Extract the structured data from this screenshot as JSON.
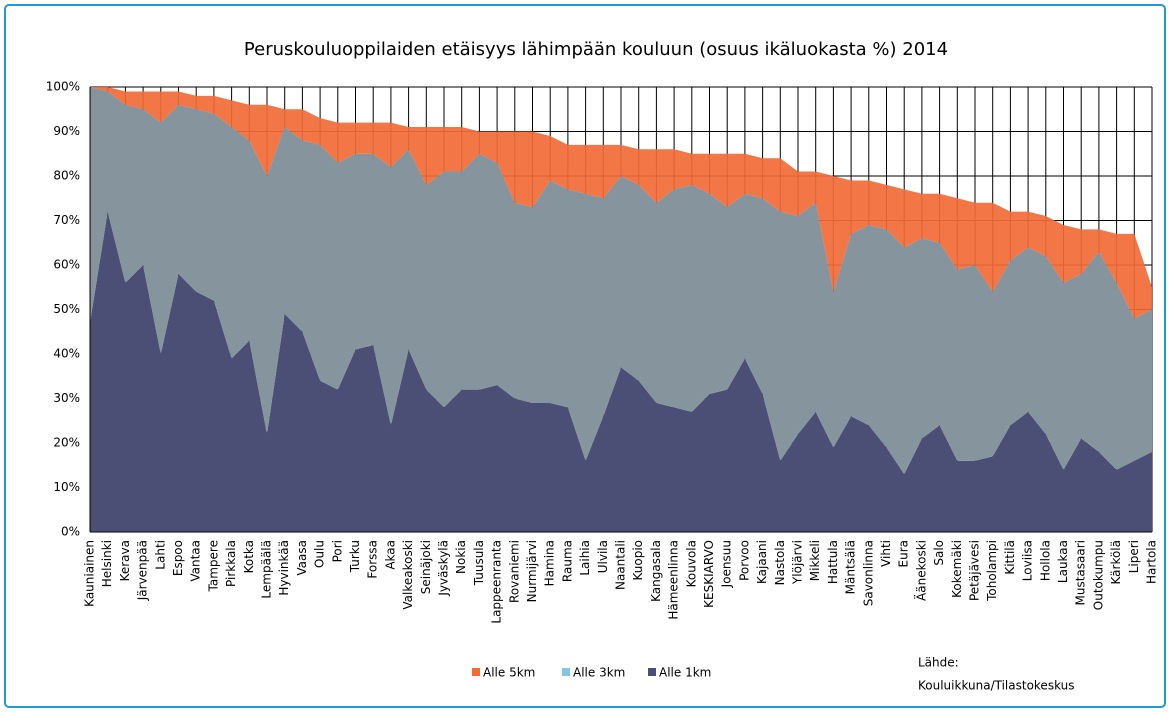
{
  "chart_data": {
    "type": "stacked_area",
    "title": "Peruskouluoppilaiden etäisyys lähimpään kouluun (osuus ikäluokasta %) 2014",
    "categories": [
      "Kauniainen",
      "Helsinki",
      "Kerava",
      "Järvenpää",
      "Lahti",
      "Espoo",
      "Vantaa",
      "Tampere",
      "Pirkkala",
      "Kotka",
      "Lempäälä",
      "Hyvinkää",
      "Vaasa",
      "Oulu",
      "Pori",
      "Turku",
      "Forssa",
      "Akaa",
      "Valkeakoski",
      "Seinäjoki",
      "Jyväskylä",
      "Nokia",
      "Tuusula",
      "Lappeenranta",
      "Rovaniemi",
      "Nurmijärvi",
      "Hamina",
      "Rauma",
      "Laihia",
      "Ulvila",
      "Naantali",
      "Kuopio",
      "Kangasala",
      "Hämeenlinna",
      "Kouvola",
      "KESKIARVO",
      "Joensuu",
      "Porvoo",
      "Kajaani",
      "Nastola",
      "Ylöjärvi",
      "Mikkeli",
      "Hattula",
      "Mäntsälä",
      "Savonlinna",
      "Vihti",
      "Eura",
      "Äänekoski",
      "Salo",
      "Kokemäki",
      "Petäjävesi",
      "Toholampi",
      "Kittilä",
      "Loviisa",
      "Hollola",
      "Laukaa",
      "Mustasaari",
      "Outokumpu",
      "Kärkölä",
      "Liperi",
      "Hartola"
    ],
    "series": [
      {
        "name": "Alle 1km",
        "color": "#4b4f76",
        "values": [
          47,
          72,
          56,
          60,
          40,
          58,
          54,
          52,
          39,
          43,
          22,
          49,
          45,
          34,
          32,
          41,
          42,
          24,
          41,
          32,
          28,
          32,
          32,
          33,
          30,
          29,
          29,
          28,
          16,
          26,
          37,
          34,
          29,
          28,
          27,
          31,
          32,
          39,
          31,
          16,
          22,
          27,
          19,
          26,
          24,
          19,
          13,
          21,
          24,
          16,
          16,
          17,
          24,
          27,
          22,
          14,
          21,
          18,
          14,
          16,
          18
        ]
      },
      {
        "name": "Alle 3km",
        "color": "#86959d",
        "values": [
          53,
          27,
          40,
          35,
          52,
          38,
          41,
          42,
          52,
          45,
          58,
          42,
          43,
          53,
          51,
          44,
          43,
          58,
          45,
          46,
          53,
          49,
          53,
          50,
          44,
          44,
          50,
          49,
          60,
          49,
          43,
          44,
          45,
          49,
          51,
          45,
          41,
          37,
          44,
          56,
          49,
          47,
          35,
          41,
          45,
          49,
          51,
          45,
          41,
          43,
          44,
          37,
          37,
          37,
          40,
          42,
          37,
          45,
          42,
          32,
          32
        ]
      },
      {
        "name": "Alle 5km",
        "color": "#f26a36",
        "values": [
          0,
          1,
          3,
          4,
          7,
          3,
          3,
          4,
          6,
          8,
          16,
          4,
          7,
          6,
          9,
          7,
          7,
          10,
          5,
          13,
          10,
          10,
          5,
          7,
          16,
          17,
          10,
          10,
          11,
          12,
          7,
          8,
          12,
          9,
          7,
          9,
          12,
          9,
          9,
          12,
          10,
          7,
          26,
          12,
          10,
          10,
          13,
          10,
          11,
          16,
          14,
          20,
          11,
          8,
          9,
          13,
          10,
          5,
          11,
          19,
          5
        ]
      }
    ],
    "ylim": [
      0,
      100
    ],
    "yticks": [
      {
        "value": 0,
        "label": "0%"
      },
      {
        "value": 10,
        "label": "10%"
      },
      {
        "value": 20,
        "label": "20%"
      },
      {
        "value": 30,
        "label": "30%"
      },
      {
        "value": 40,
        "label": "40%"
      },
      {
        "value": 50,
        "label": "50%"
      },
      {
        "value": 60,
        "label": "60%"
      },
      {
        "value": 70,
        "label": "70%"
      },
      {
        "value": 80,
        "label": "80%"
      },
      {
        "value": 90,
        "label": "90%"
      },
      {
        "value": 100,
        "label": "100%"
      }
    ],
    "grid": true,
    "legend": "bottom",
    "annotations": [
      "Lähde:",
      "Kouluikkuna/Tilastokeskus"
    ]
  }
}
